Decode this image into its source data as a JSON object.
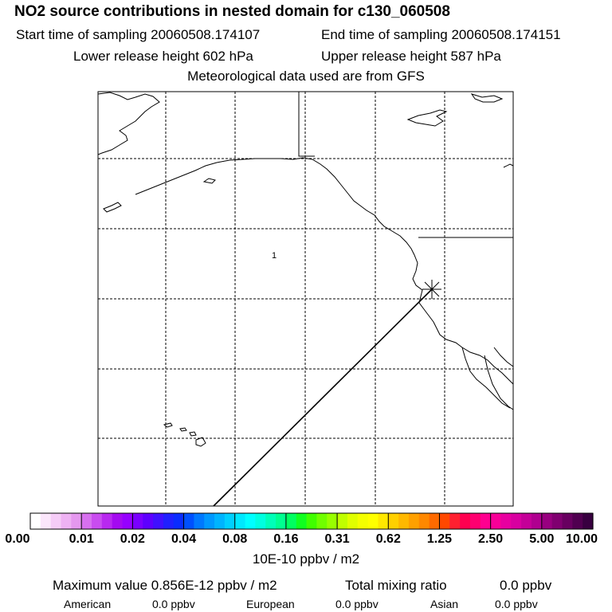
{
  "header": {
    "title": "NO2 source contributions in nested domain for c130_060508",
    "start_sampling": "Start time of sampling 20060508.174107",
    "end_sampling": "End time of sampling 20060508.174151",
    "lower_release": "Lower release height  602 hPa",
    "upper_release": "Upper release height  587 hPa",
    "met_data": "Meteorological data used are from GFS"
  },
  "map": {
    "region_label": "1",
    "receptor_marker": "asterisk-marker",
    "colors": {
      "coast": "#000000",
      "grid": "#000000",
      "frame": "#000000"
    }
  },
  "colorbar": {
    "tick_labels": [
      "0.00",
      "0.01",
      "0.02",
      "0.04",
      "0.08",
      "0.16",
      "0.31",
      "0.62",
      "1.25",
      "2.50",
      "5.00",
      "10.00"
    ],
    "colors": [
      "#ffffff",
      "#fbe6fb",
      "#f5ccf7",
      "#eeb2f3",
      "#e598ef",
      "#d770ef",
      "#c94cef",
      "#b828ef",
      "#a40af0",
      "#9600ff",
      "#7a00ff",
      "#5e00ff",
      "#4010ff",
      "#2020ff",
      "#0a2cff",
      "#0050ff",
      "#0078ff",
      "#0098ff",
      "#00b4ff",
      "#00d0ff",
      "#00e8ff",
      "#00ffff",
      "#00ffe0",
      "#00ffb8",
      "#00ff90",
      "#00ff60",
      "#10ff20",
      "#40ff00",
      "#70ff00",
      "#98ff00",
      "#c0ff00",
      "#e0ff00",
      "#f4ff00",
      "#ffff00",
      "#ffe800",
      "#ffd000",
      "#ffb800",
      "#ffa000",
      "#ff8800",
      "#ff6a00",
      "#ff4800",
      "#ff2030",
      "#ff0050",
      "#ff0070",
      "#ff0090",
      "#f80098",
      "#e800a0",
      "#d800a0",
      "#c40098",
      "#b00090",
      "#980080",
      "#800070",
      "#680060",
      "#500050",
      "#380040"
    ],
    "units": "10E-10 ppbv / m2"
  },
  "summary": {
    "max_value": "Maximum value  0.856E-12 ppbv / m2",
    "total_label": "Total mixing ratio",
    "total_value": "0.0 ppbv",
    "american_label": "American",
    "american_value": "0.0 ppbv",
    "european_label": "European",
    "european_value": "0.0 ppbv",
    "asian_label": "Asian",
    "asian_value": "0.0 ppbv"
  }
}
